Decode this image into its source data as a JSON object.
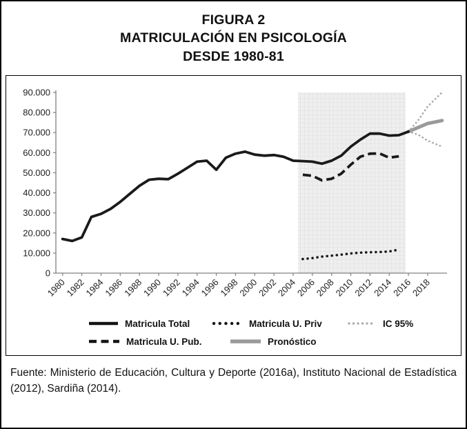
{
  "figure": {
    "title_line1": "FIGURA 2",
    "title_line2": "MATRICULACIÓN EN PSICOLOGÍA",
    "title_line3": "DESDE 1980-81"
  },
  "source": {
    "text": "Fuente: Ministerio de Educación, Cultura y Deporte (2016a), Instituto Nacional de Estadística (2012), Sardiña (2014)."
  },
  "chart_data": {
    "type": "line",
    "title": "FIGURA 2 — MATRICULACIÓN EN PSICOLOGÍA DESDE 1980-81",
    "xlabel": "",
    "ylabel": "",
    "grid": false,
    "legend_position": "bottom",
    "xlim": [
      1979.3,
      2019.8
    ],
    "ylim": [
      0,
      90000
    ],
    "x_ticks": [
      1980,
      1982,
      1984,
      1986,
      1988,
      1990,
      1992,
      1994,
      1996,
      1998,
      2000,
      2002,
      2004,
      2006,
      2008,
      2010,
      2012,
      2014,
      2016,
      2018
    ],
    "x_tick_labels": [
      "1980",
      "1982",
      "1984",
      "1986",
      "1988",
      "1990",
      "1992",
      "1994",
      "1996",
      "1998",
      "2000",
      "2002",
      "2004",
      "2006",
      "2008",
      "2010",
      "2012",
      "2014",
      "2016",
      "2018"
    ],
    "y_ticks": [
      0,
      10000,
      20000,
      30000,
      40000,
      50000,
      60000,
      70000,
      80000,
      90000
    ],
    "y_tick_labels": [
      "0",
      "10.000",
      "20.000",
      "30.000",
      "40.000",
      "50.000",
      "60.000",
      "70.000",
      "80.000",
      "90.000"
    ],
    "forecast_band": {
      "x_start": 2004.5,
      "x_end": 2015.7
    },
    "colors": {
      "line_black": "#1a1a1a",
      "forecast_gray": "#9a9a9a",
      "ic_gray": "#ababab",
      "band_fill": "#efefef",
      "axis": "#808080"
    },
    "series": [
      {
        "name": "Matricula Total",
        "color": "#1a1a1a",
        "width": 3.8,
        "dash": "solid",
        "x": [
          1980,
          1981,
          1982,
          1983,
          1984,
          1985,
          1986,
          1987,
          1988,
          1989,
          1990,
          1991,
          1992,
          1993,
          1994,
          1995,
          1996,
          1997,
          1998,
          1999,
          2000,
          2001,
          2002,
          2003,
          2004,
          2005,
          2006,
          2007,
          2008,
          2009,
          2010,
          2011,
          2012,
          2013,
          2014,
          2015,
          2016
        ],
        "values": [
          17000,
          16000,
          17800,
          28000,
          29500,
          32000,
          35500,
          39500,
          43500,
          46500,
          47000,
          46800,
          49500,
          52500,
          55500,
          56000,
          51500,
          57500,
          59500,
          60500,
          59000,
          58500,
          58800,
          58000,
          56000,
          55800,
          55500,
          54500,
          56000,
          58500,
          63000,
          66500,
          69500,
          69500,
          68500,
          68700,
          70500
        ]
      },
      {
        "name": "Matricula U. Priv",
        "color": "#1a1a1a",
        "width": 3.6,
        "dash": "dot",
        "x": [
          2005,
          2006,
          2007,
          2008,
          2009,
          2010,
          2011,
          2012,
          2013,
          2014,
          2015
        ],
        "values": [
          7000,
          7500,
          8200,
          8700,
          9200,
          9800,
          10200,
          10400,
          10500,
          10800,
          11700
        ]
      },
      {
        "name": "Matricula U. Pub.",
        "color": "#1a1a1a",
        "width": 3.8,
        "dash": "dash",
        "x": [
          2005,
          2006,
          2007,
          2008,
          2009,
          2010,
          2011,
          2012,
          2013,
          2014,
          2015
        ],
        "values": [
          49000,
          48500,
          46200,
          47000,
          49500,
          54000,
          58000,
          59500,
          59600,
          57500,
          58200
        ]
      },
      {
        "name": "IC 95% superior",
        "color": "#ababab",
        "width": 2.8,
        "dash": "dot",
        "x": [
          2016,
          2017,
          2018,
          2019.5
        ],
        "values": [
          70500,
          76000,
          83000,
          90000
        ]
      },
      {
        "name": "IC 95% inferior",
        "color": "#ababab",
        "width": 2.8,
        "dash": "dot",
        "x": [
          2016,
          2017,
          2018,
          2019.5
        ],
        "values": [
          70500,
          69000,
          66000,
          63000
        ]
      },
      {
        "name": "Pronóstico",
        "color": "#9a9a9a",
        "width": 5,
        "dash": "solid",
        "x": [
          2016,
          2017,
          2018,
          2019.5
        ],
        "values": [
          70500,
          72500,
          74500,
          76000
        ]
      }
    ],
    "legend": {
      "row1": [
        "Matricula Total",
        "Matricula U. Priv",
        "IC 95%"
      ],
      "row2": [
        "Matricula U. Pub.",
        "Pronóstico"
      ]
    }
  }
}
